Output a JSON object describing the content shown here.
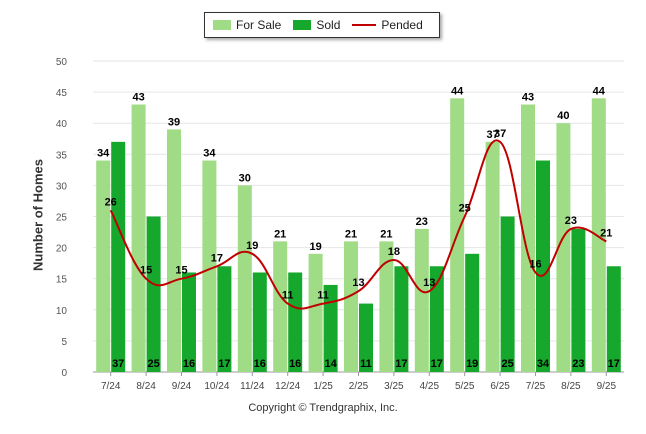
{
  "colors": {
    "for_sale": "#9fdc85",
    "sold": "#16a82d",
    "pended": "#c00000",
    "grid": "#e6e6e6"
  },
  "legend": {
    "for_sale": "For Sale",
    "sold": "Sold",
    "pended": "Pended"
  },
  "copyright": "Copyright © Trendgraphix, Inc.",
  "chart_data": {
    "type": "bar",
    "title": "",
    "xlabel": "",
    "ylabel": "Number of Homes",
    "ylim": [
      0,
      50
    ],
    "yticks": [
      0,
      5,
      10,
      15,
      20,
      25,
      30,
      35,
      40,
      45,
      50
    ],
    "grid": true,
    "legend_position": "top-center",
    "categories": [
      "7/24",
      "8/24",
      "9/24",
      "10/24",
      "11/24",
      "12/24",
      "1/25",
      "2/25",
      "3/25",
      "4/25",
      "5/25",
      "6/25",
      "7/25",
      "8/25",
      "9/25"
    ],
    "series": [
      {
        "name": "For Sale",
        "type": "bar",
        "values": [
          34,
          43,
          39,
          34,
          30,
          21,
          19,
          21,
          21,
          23,
          44,
          37,
          43,
          40,
          44
        ]
      },
      {
        "name": "Sold",
        "type": "bar",
        "values": [
          37,
          25,
          16,
          17,
          16,
          16,
          14,
          11,
          17,
          17,
          19,
          25,
          34,
          23,
          17
        ]
      },
      {
        "name": "Pended",
        "type": "line",
        "values": [
          26,
          15,
          15,
          17,
          19,
          11,
          11,
          13,
          18,
          13,
          25,
          37,
          16,
          23,
          21
        ]
      }
    ]
  }
}
